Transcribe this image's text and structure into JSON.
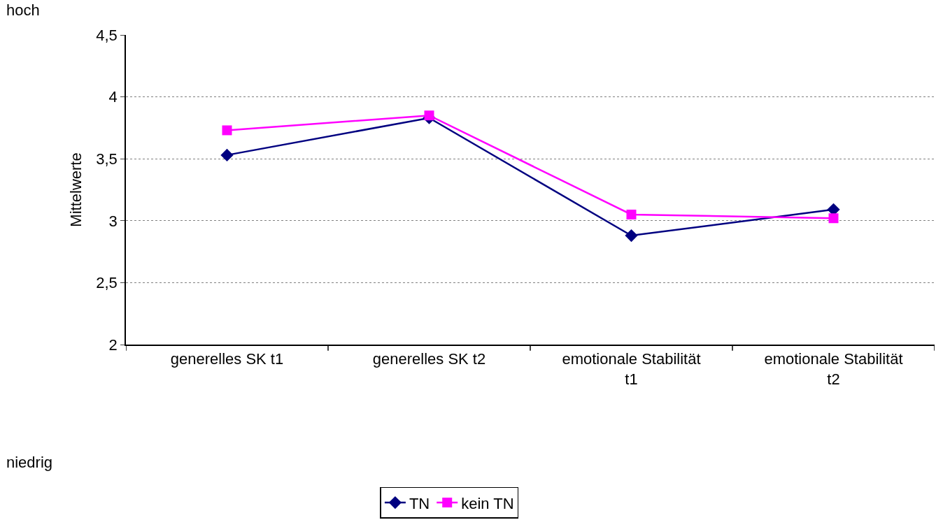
{
  "chart_data": {
    "type": "line",
    "ylabel": "Mittelwerte",
    "categories": [
      "generelles SK t1",
      "generelles SK t2",
      "emotionale Stabilität t1",
      "emotionale Stabilität t2"
    ],
    "series": [
      {
        "name": "TN",
        "color": "#000080",
        "marker": "diamond",
        "values": [
          3.53,
          3.83,
          2.88,
          3.09
        ]
      },
      {
        "name": "kein TN",
        "color": "#ff00ff",
        "marker": "square",
        "values": [
          3.73,
          3.85,
          3.05,
          3.02
        ]
      }
    ],
    "ylim": [
      2,
      4.5
    ],
    "yticks": [
      {
        "value": 2,
        "label": "2"
      },
      {
        "value": 2.5,
        "label": "2,5"
      },
      {
        "value": 3,
        "label": "3"
      },
      {
        "value": 3.5,
        "label": "3,5"
      },
      {
        "value": 4,
        "label": "4"
      },
      {
        "value": 4.5,
        "label": "4,5"
      }
    ],
    "grid": "y",
    "legend": "bottom",
    "line_style": "solid",
    "annotations": [
      "hoch",
      "niedrig"
    ]
  }
}
